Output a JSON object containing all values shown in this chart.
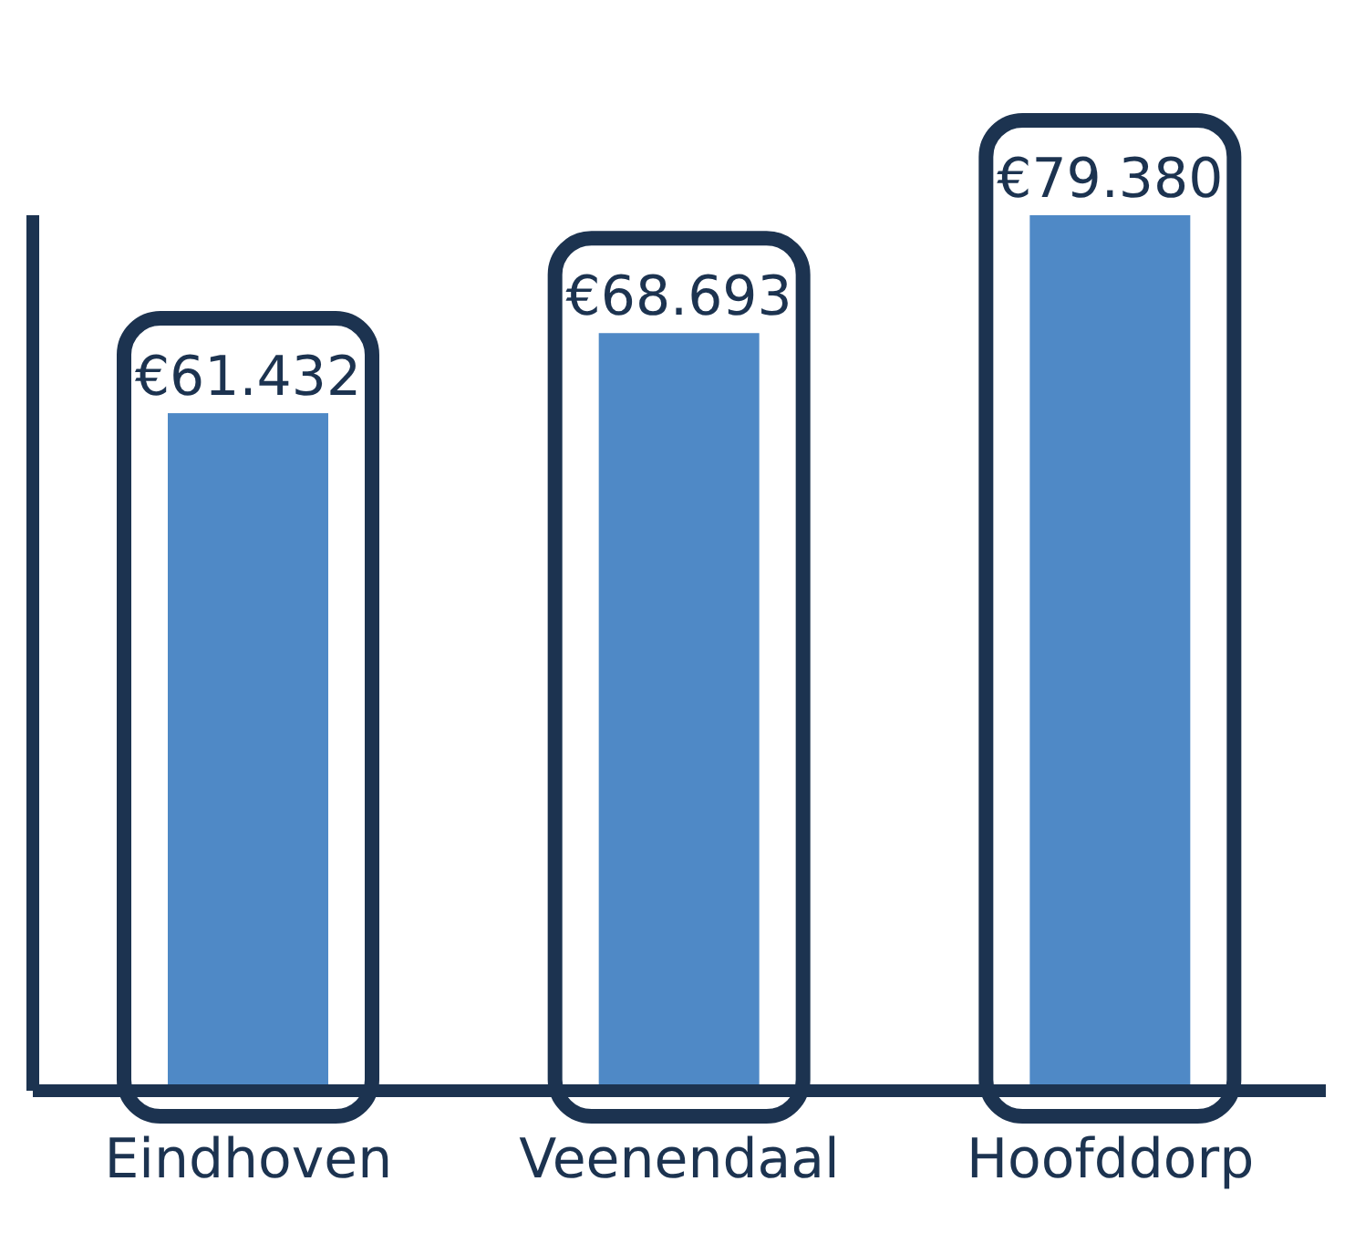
{
  "chart_data": {
    "type": "bar",
    "categories": [
      "Eindhoven",
      "Veenendaal",
      "Hoofddorp"
    ],
    "values": [
      61432,
      68693,
      79380
    ],
    "value_labels": [
      "€61.432",
      "€68.693",
      "€79.380"
    ],
    "color": "#4f89c6",
    "grid": false,
    "legend": false
  }
}
